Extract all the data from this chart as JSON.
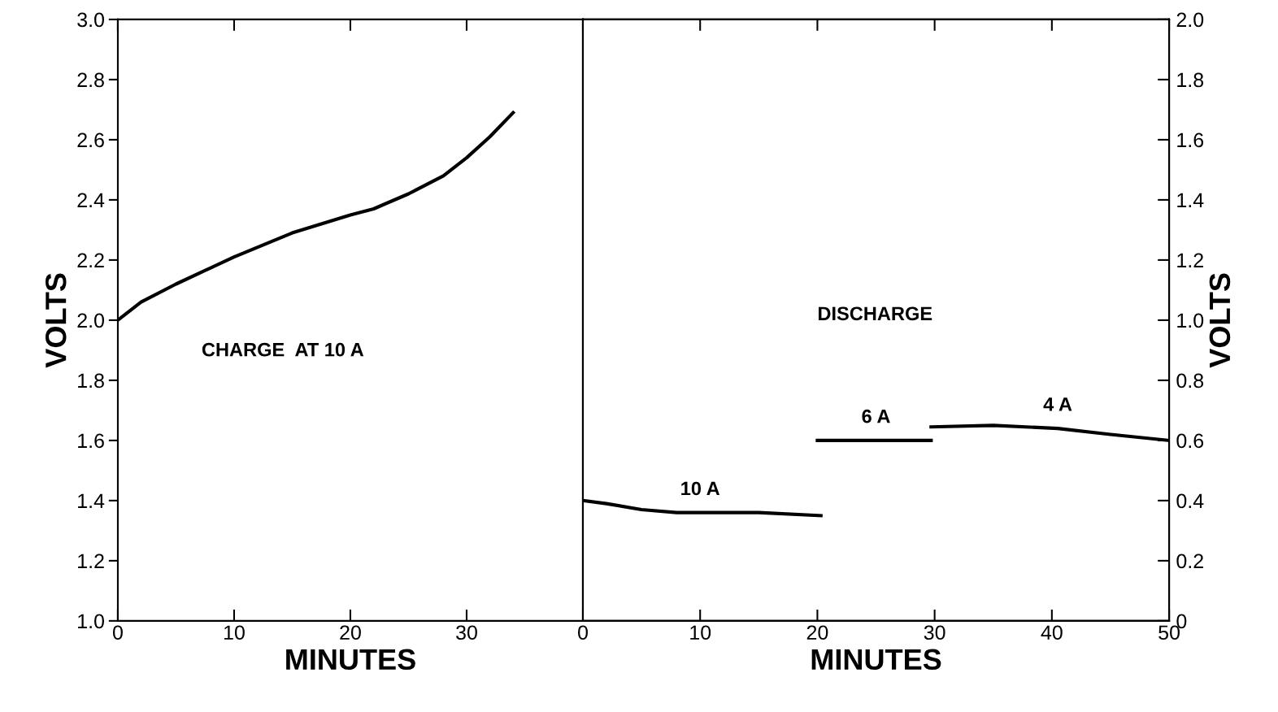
{
  "chart_data": [
    {
      "type": "line",
      "xlabel": "MINUTES",
      "ylabel": "VOLTS",
      "annotations": [
        "CHARGE  AT 10 A"
      ],
      "xlim": [
        0,
        40
      ],
      "xticks": [
        0,
        10,
        20,
        30
      ],
      "ylim": [
        1.0,
        3.0
      ],
      "yticks": [
        {
          "value": 1.0,
          "label": "1.0"
        },
        1.2,
        1.4,
        1.6,
        1.8,
        {
          "value": 2.0,
          "label": "2.0"
        },
        2.2,
        2.4,
        2.6,
        2.8,
        {
          "value": 3.0,
          "label": "3.0"
        }
      ],
      "grid": false,
      "legend": false,
      "series": [
        {
          "color": "#000000",
          "x": [
            0,
            2,
            5,
            10,
            15,
            20,
            22,
            25,
            28,
            30,
            32,
            34
          ],
          "values": [
            2.0,
            2.06,
            2.12,
            2.21,
            2.29,
            2.35,
            2.37,
            2.42,
            2.48,
            2.54,
            2.61,
            2.69
          ]
        }
      ]
    },
    {
      "type": "line",
      "xlabel": "MINUTES",
      "y2label": "VOLTS",
      "annotations": [
        "DISCHARGE"
      ],
      "xlim": [
        0,
        50
      ],
      "xticks": [
        0,
        10,
        20,
        30,
        40,
        50
      ],
      "y2lim": [
        0,
        2.0
      ],
      "y2ticks": [
        0,
        0.2,
        0.4,
        0.6,
        0.8,
        {
          "value": 1.0,
          "label": "1.0"
        },
        1.2,
        1.4,
        1.6,
        1.8,
        {
          "value": 2.0,
          "label": "2.0"
        }
      ],
      "grid": false,
      "legend": false,
      "series": [
        {
          "name": "10 A",
          "color": "#000000",
          "axis": "y2",
          "x": [
            0,
            2,
            5,
            8,
            10,
            15,
            20.3
          ],
          "values": [
            0.4,
            0.39,
            0.37,
            0.36,
            0.36,
            0.36,
            0.35
          ]
        },
        {
          "name": "6 A",
          "color": "#000000",
          "axis": "y2",
          "x": [
            20,
            25,
            29.7
          ],
          "values": [
            0.6,
            0.6,
            0.6
          ]
        },
        {
          "name": "4 A",
          "color": "#000000",
          "axis": "y2",
          "x": [
            29.7,
            35,
            40.5,
            45,
            50
          ],
          "values": [
            0.645,
            0.65,
            0.64,
            0.62,
            0.6
          ]
        }
      ]
    }
  ]
}
